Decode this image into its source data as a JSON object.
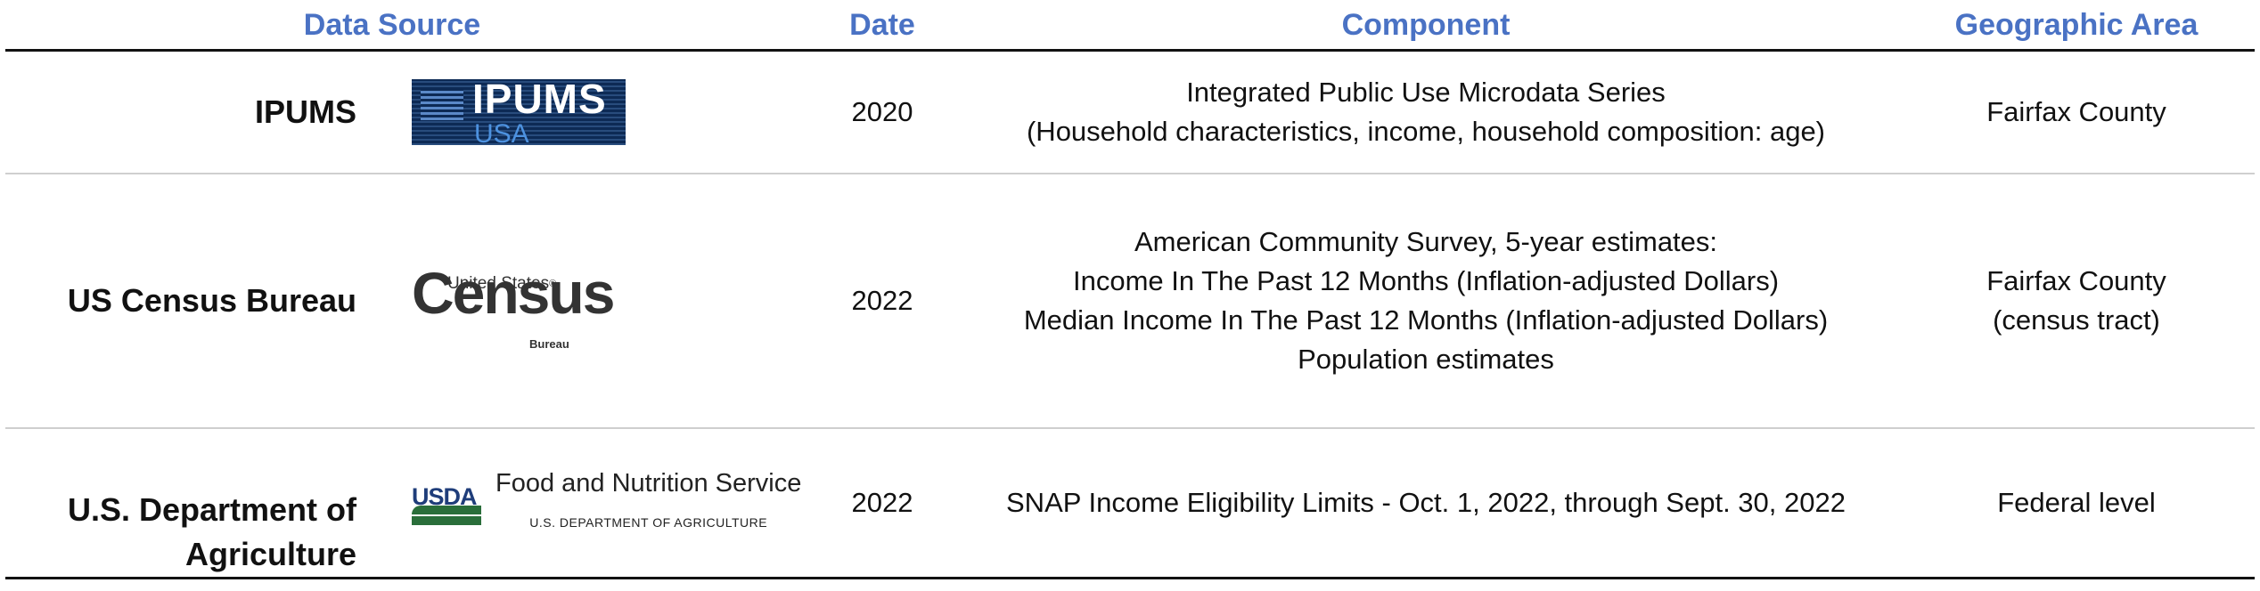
{
  "header": {
    "data_source": "Data Source",
    "date": "Date",
    "component": "Component",
    "geographic_area": "Geographic Area"
  },
  "rows": [
    {
      "source": "IPUMS",
      "logo": {
        "primary": "IPUMS",
        "secondary": "USA",
        "icon": "ipums-usa-logo"
      },
      "date": "2020",
      "component": [
        "Integrated Public Use Microdata Series",
        "(Household characteristics, income, household composition: age)"
      ],
      "geo": [
        "Fairfax County"
      ]
    },
    {
      "source": "US Census Bureau",
      "logo": {
        "top": "United States",
        "reg": "®",
        "main": "Census",
        "bottom": "Bureau",
        "icon": "census-bureau-logo"
      },
      "date": "2022",
      "component": [
        "American Community Survey, 5-year estimates:",
        "Income In The Past 12 Months (Inflation-adjusted Dollars)",
        "Median Income In The Past 12 Months (Inflation-adjusted Dollars)",
        "Population estimates"
      ],
      "geo": [
        "Fairfax County",
        "(census tract)"
      ]
    },
    {
      "source_lines": [
        "U.S. Department of",
        "Agriculture"
      ],
      "logo": {
        "mark": "USDA",
        "name": "Food and Nutrition Service",
        "dept": "U.S. DEPARTMENT OF AGRICULTURE",
        "icon": "usda-logo"
      },
      "date": "2022",
      "component": [
        "SNAP Income Eligibility Limits - Oct. 1, 2022, through Sept. 30, 2022"
      ],
      "geo": [
        "Federal level"
      ]
    }
  ],
  "colors": {
    "header": "#4a72c4",
    "rule": "#111111",
    "divider": "#cfcfcf"
  }
}
